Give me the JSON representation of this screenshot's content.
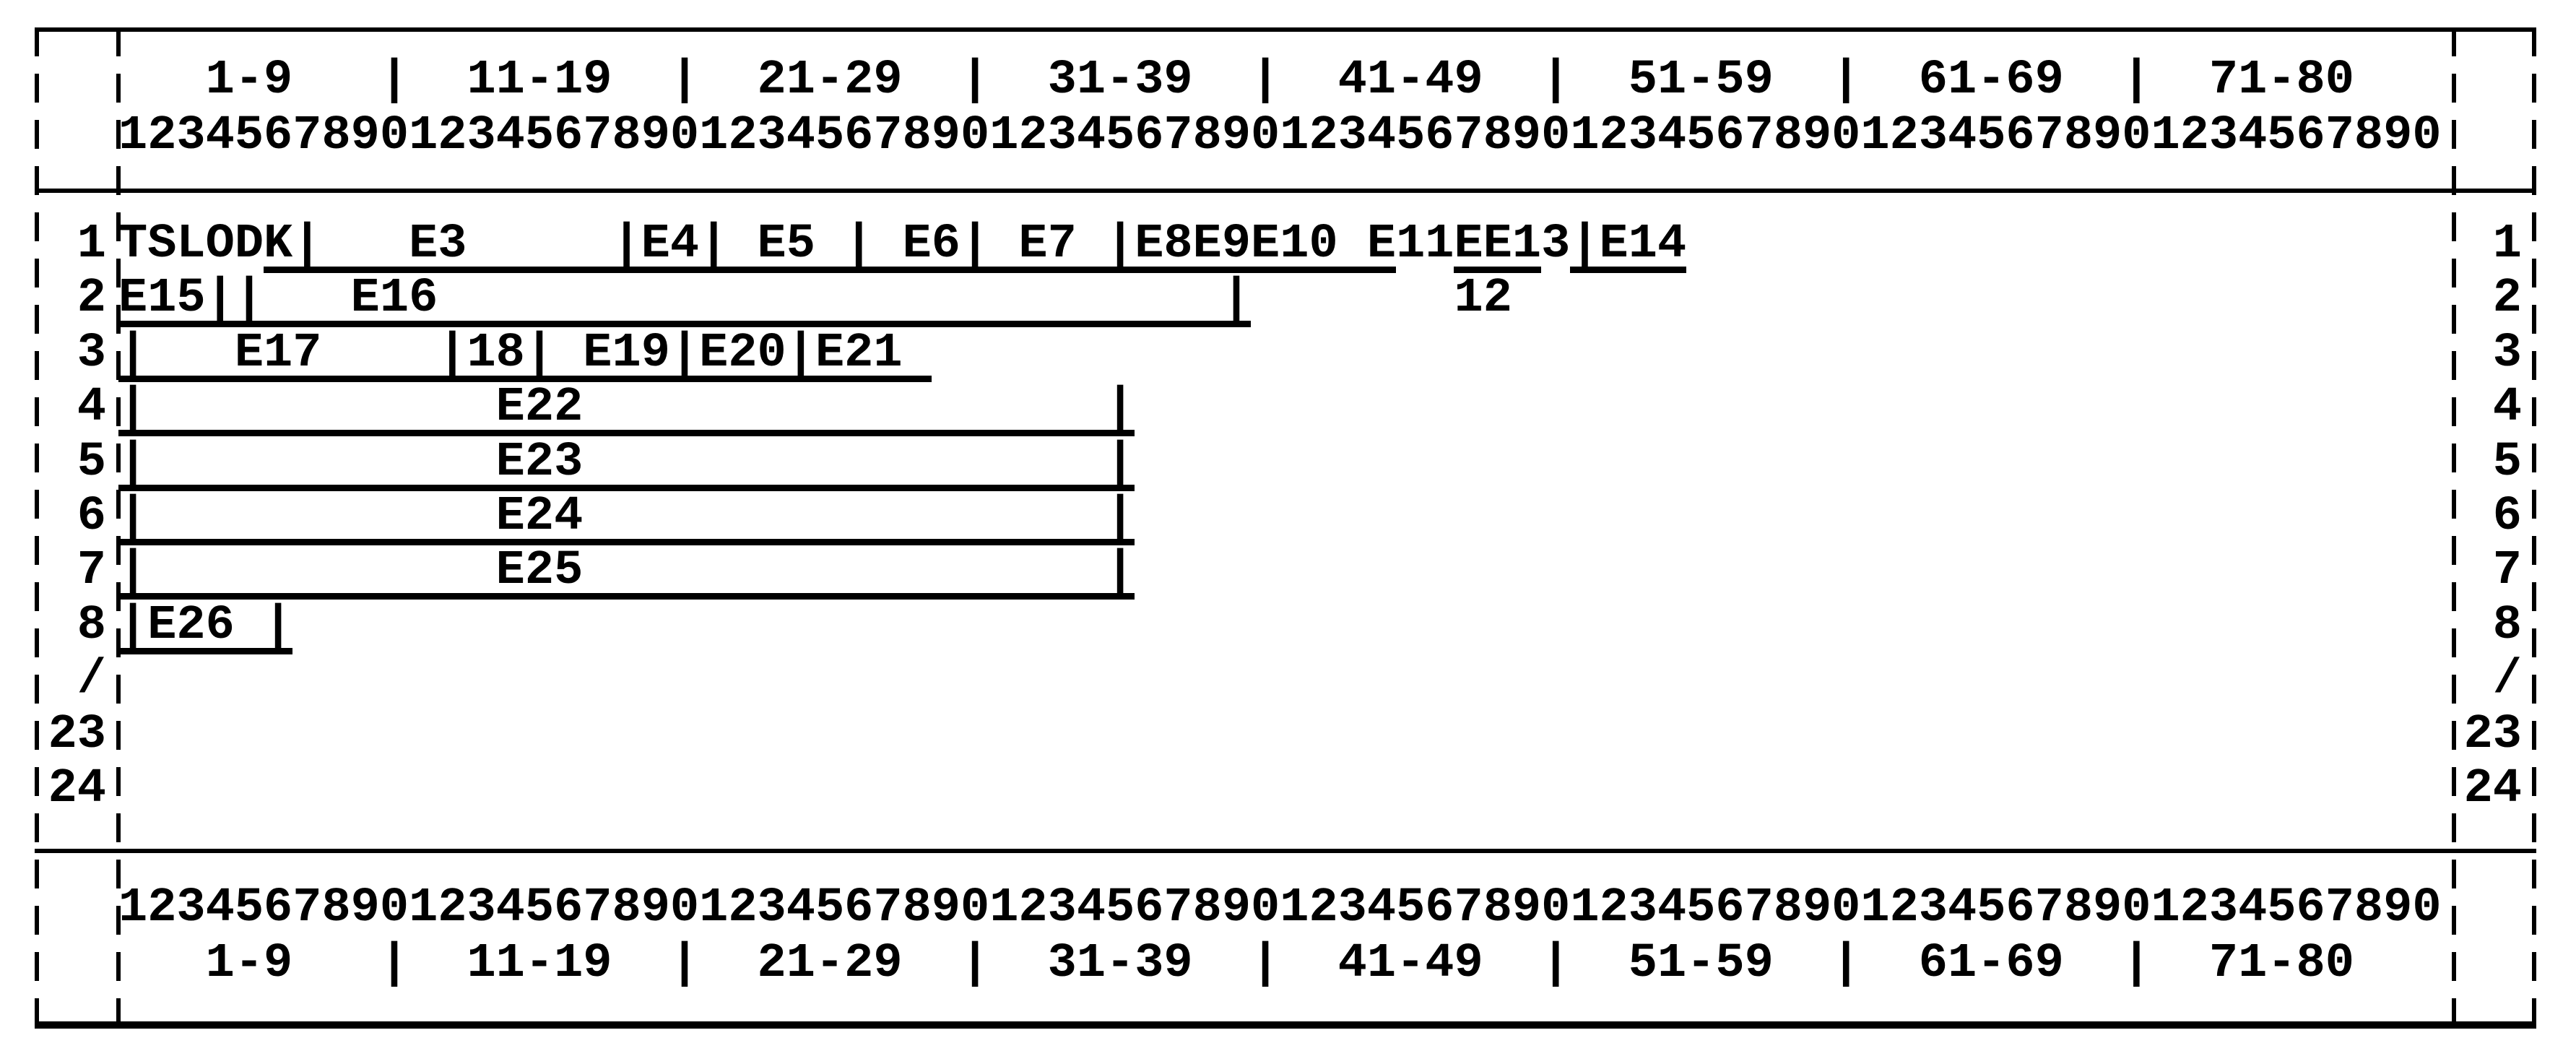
{
  "page": {
    "background": "#ffffff",
    "ink": "#000000"
  },
  "ruler": {
    "groups": "   1-9   |  11-19  |  21-29  |  31-39  |  41-49  |  51-59  |  61-69  |  71-80   ",
    "digits": "12345678901234567890123456789012345678901234567890123456789012345678901234567890"
  },
  "grid": {
    "rows": [
      {
        "left": "1",
        "right": "1",
        "text": "TSLODK|   E3     |E4| E5 | E6| E7 |E8E9E10 E11EE13|E14",
        "underlines": [
          [
            6,
            44
          ],
          [
            47,
            49
          ],
          [
            51,
            54
          ]
        ]
      },
      {
        "left": "2",
        "right": "2",
        "text": "E15||   E16                           |       12",
        "underlines": [
          [
            1,
            39
          ]
        ]
      },
      {
        "left": "3",
        "right": "3",
        "text": "|   E17    |18| E19|E20|E21",
        "underlines": [
          [
            1,
            28
          ]
        ]
      },
      {
        "left": "4",
        "right": "4",
        "text": "|            E22                  |",
        "underlines": [
          [
            1,
            35
          ]
        ]
      },
      {
        "left": "5",
        "right": "5",
        "text": "|            E23                  |",
        "underlines": [
          [
            1,
            35
          ]
        ]
      },
      {
        "left": "6",
        "right": "6",
        "text": "|            E24                  |",
        "underlines": [
          [
            1,
            35
          ]
        ]
      },
      {
        "left": "7",
        "right": "7",
        "text": "|            E25                  |",
        "underlines": [
          [
            1,
            35
          ]
        ]
      },
      {
        "left": "8",
        "right": "8",
        "text": "|E26 |",
        "underlines": [
          [
            1,
            6
          ]
        ]
      },
      {
        "left": "/",
        "right": "/",
        "text": "",
        "underlines": []
      },
      {
        "left": "23",
        "right": "23",
        "text": "",
        "underlines": []
      },
      {
        "left": "24",
        "right": "24",
        "text": "",
        "underlines": []
      }
    ]
  }
}
